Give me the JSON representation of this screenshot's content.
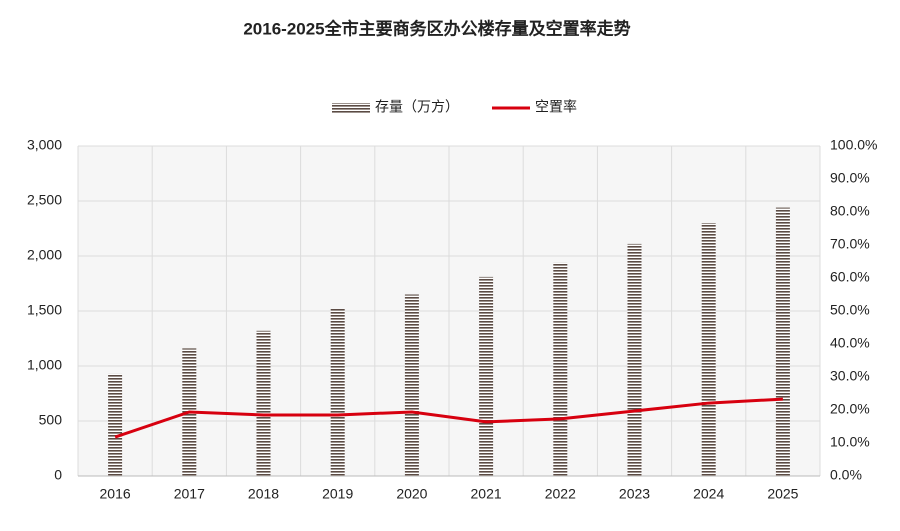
{
  "chart_data": {
    "type": "bar",
    "title": "2016-2025全市主要商务区办公楼存量及空置率走势",
    "categories": [
      "2016",
      "2017",
      "2018",
      "2019",
      "2020",
      "2021",
      "2022",
      "2023",
      "2024",
      "2025"
    ],
    "series": [
      {
        "name": "存量（万方）",
        "type": "bar",
        "color": "#5b4b44",
        "values": [
          930,
          1160,
          1320,
          1520,
          1650,
          1810,
          1940,
          2110,
          2300,
          2440
        ]
      },
      {
        "name": "空置率",
        "type": "line",
        "axis": "y2",
        "color": "#d7000f",
        "values": [
          11.8,
          19.4,
          18.5,
          18.5,
          19.4,
          16.4,
          17.3,
          19.7,
          22.1,
          23.3
        ]
      }
    ],
    "ylim": [
      0,
      3000
    ],
    "yticks": [
      0,
      500,
      {
        "value": 1000,
        "label": "1,000"
      },
      {
        "value": 1500,
        "label": "1,500"
      },
      {
        "value": 2000,
        "label": "2,000"
      },
      {
        "value": 2500,
        "label": "2,500"
      },
      {
        "value": 3000,
        "label": "3,000"
      }
    ],
    "y2lim": [
      0,
      100
    ],
    "y2ticks": [
      {
        "value": 0,
        "label": "0.0%"
      },
      {
        "value": 10,
        "label": "10.0%"
      },
      {
        "value": 20,
        "label": "20.0%"
      },
      {
        "value": 30,
        "label": "30.0%"
      },
      {
        "value": 40,
        "label": "40.0%"
      },
      {
        "value": 50,
        "label": "50.0%"
      },
      {
        "value": 60,
        "label": "60.0%"
      },
      {
        "value": 70,
        "label": "70.0%"
      },
      {
        "value": 80,
        "label": "80.0%"
      },
      {
        "value": 90,
        "label": "90.0%"
      },
      {
        "value": 100,
        "label": "100.0%"
      }
    ],
    "grid": true,
    "legend": "top"
  }
}
